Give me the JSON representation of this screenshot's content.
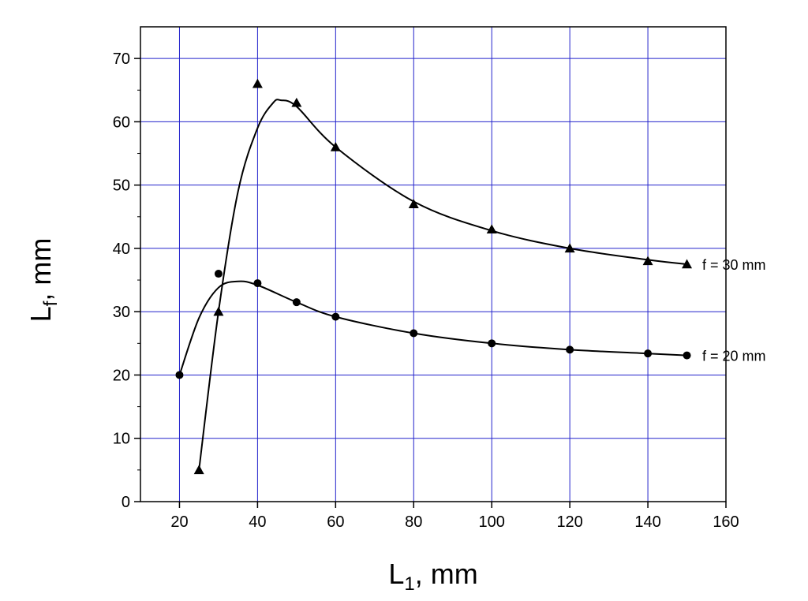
{
  "chart_data": {
    "type": "scatter",
    "xlabel": {
      "main": "L",
      "sub": "1",
      "suffix": ", mm"
    },
    "ylabel": {
      "main": "L",
      "sub": "f",
      "suffix": ", mm"
    },
    "xlim": [
      10,
      160
    ],
    "ylim": [
      0,
      75
    ],
    "xticks": [
      20,
      40,
      60,
      80,
      100,
      120,
      140,
      160
    ],
    "yticks": [
      0,
      10,
      20,
      30,
      40,
      50,
      60,
      70
    ],
    "grid": true,
    "colors": {
      "grid": "#2222cc",
      "marker": "#000000",
      "line": "#000000"
    },
    "series": [
      {
        "name": "f = 20 mm",
        "marker": "circle",
        "x": [
          20,
          30,
          40,
          50,
          60,
          80,
          100,
          120,
          140,
          150
        ],
        "y": [
          20,
          36,
          34.5,
          31.5,
          29.2,
          26.6,
          25,
          24,
          23.4,
          23.1
        ],
        "curve_x": [
          20,
          25,
          30,
          35,
          40,
          50,
          60,
          80,
          100,
          120,
          140,
          150
        ],
        "curve_y": [
          20,
          29,
          33.8,
          34.8,
          34.2,
          31.5,
          29.2,
          26.6,
          25,
          24,
          23.4,
          23.1
        ]
      },
      {
        "name": "f = 30 mm",
        "marker": "triangle",
        "x": [
          25,
          30,
          40,
          50,
          60,
          80,
          100,
          120,
          140,
          150
        ],
        "y": [
          5,
          30,
          66,
          63,
          56,
          47,
          43,
          40,
          38,
          37.5
        ],
        "curve_x": [
          25,
          30,
          35,
          40,
          44,
          46,
          50,
          60,
          80,
          100,
          120,
          140,
          150
        ],
        "curve_y": [
          5,
          30,
          49,
          59,
          63,
          63.4,
          62.4,
          56,
          47.4,
          42.8,
          40,
          38.2,
          37.5
        ]
      }
    ]
  }
}
